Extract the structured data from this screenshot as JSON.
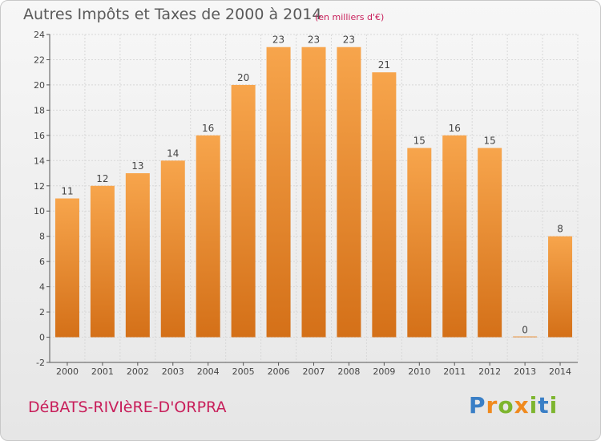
{
  "title": "Autres Impôts et Taxes de 2000 à 2014",
  "subtitle": "(en milliers d'€)",
  "place_name": "DéBATS-RIVIèRE-D'ORPRA",
  "logo_text": "Proxiti",
  "colors": {
    "bar_light": "#f7a54c",
    "bar_dark": "#d47018",
    "axis": "#555555",
    "grid": "#d8d8d8",
    "title_color": "#5a5a5a",
    "accent": "#c81e5a"
  },
  "chart_data": {
    "type": "bar",
    "title": "Autres Impôts et Taxes de 2000 à 2014",
    "subtitle": "(en milliers d'€)",
    "categories": [
      "2000",
      "2001",
      "2002",
      "2003",
      "2004",
      "2005",
      "2006",
      "2007",
      "2008",
      "2009",
      "2010",
      "2011",
      "2012",
      "2013",
      "2014"
    ],
    "values": [
      11,
      12,
      13,
      14,
      16,
      20,
      23,
      23,
      23,
      21,
      15,
      16,
      15,
      0,
      8
    ],
    "value_labels": [
      "11",
      "12",
      "13",
      "14",
      "16",
      "20",
      "23",
      "23",
      "23",
      "21",
      "15",
      "16",
      "15",
      "0",
      "8"
    ],
    "yticks": [
      "-2",
      "0",
      "2",
      "4",
      "6",
      "8",
      "10",
      "12",
      "14",
      "16",
      "18",
      "20",
      "22",
      "24"
    ],
    "ylim": [
      -2,
      24
    ],
    "xlabel": "",
    "ylabel": "",
    "grid": true
  }
}
